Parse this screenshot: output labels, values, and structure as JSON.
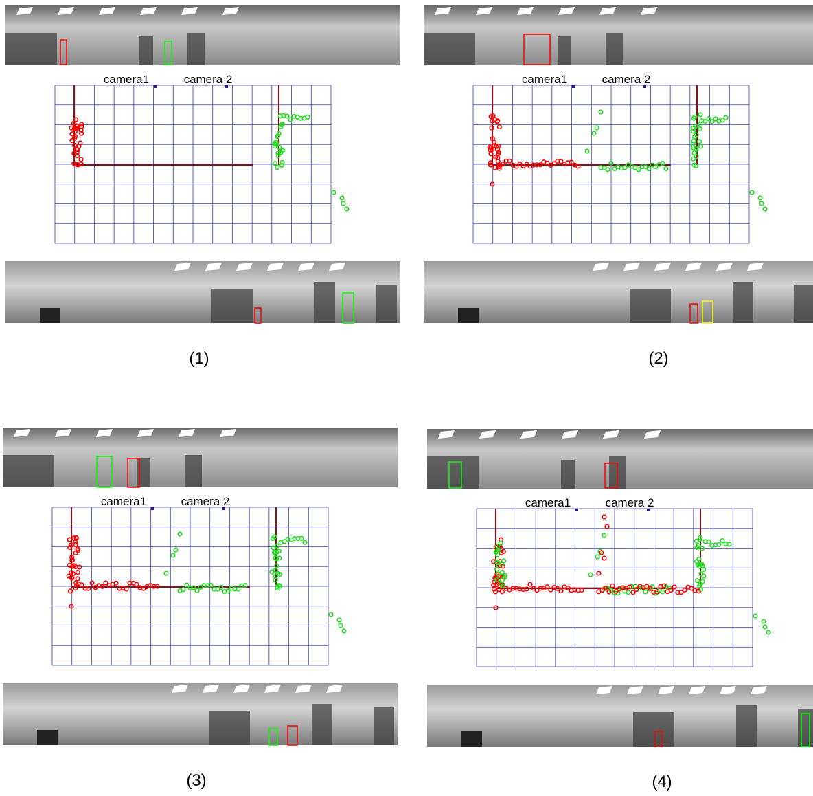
{
  "panels": [
    {
      "label": "(1)",
      "camera_labels": [
        "camera1",
        "camera 2"
      ]
    },
    {
      "label": "(2)",
      "camera_labels": [
        "camera1",
        "camera 2"
      ]
    },
    {
      "label": "(3)",
      "camera_labels": [
        "camera1",
        "camera 2"
      ]
    },
    {
      "label": "(4)",
      "camera_labels": [
        "camera1",
        "camera 2"
      ]
    }
  ]
}
